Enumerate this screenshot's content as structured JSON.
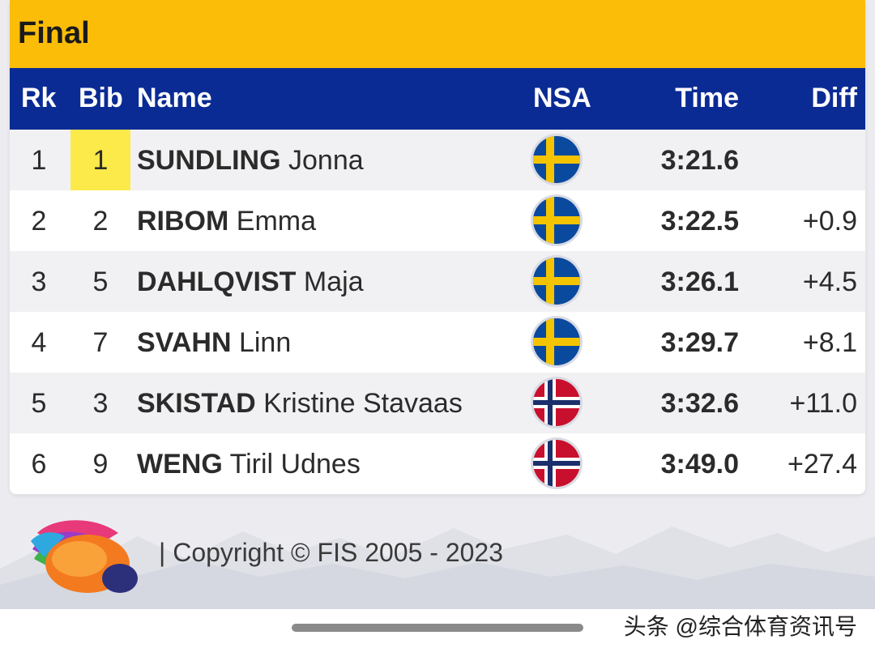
{
  "title": "Final",
  "columns": {
    "rk": "Rk",
    "bib": "Bib",
    "name": "Name",
    "nsa": "NSA",
    "time": "Time",
    "diff": "Diff"
  },
  "rows": [
    {
      "rk": "1",
      "bib": "1",
      "surname": "SUNDLING",
      "given": "Jonna",
      "nsa": "sweden-flag-icon",
      "time": "3:21.6",
      "diff": ""
    },
    {
      "rk": "2",
      "bib": "2",
      "surname": "RIBOM",
      "given": "Emma",
      "nsa": "sweden-flag-icon",
      "time": "3:22.5",
      "diff": "+0.9"
    },
    {
      "rk": "3",
      "bib": "5",
      "surname": "DAHLQVIST",
      "given": "Maja",
      "nsa": "sweden-flag-icon",
      "time": "3:26.1",
      "diff": "+4.5"
    },
    {
      "rk": "4",
      "bib": "7",
      "surname": "SVAHN",
      "given": "Linn",
      "nsa": "sweden-flag-icon",
      "time": "3:29.7",
      "diff": "+8.1"
    },
    {
      "rk": "5",
      "bib": "3",
      "surname": "SKISTAD",
      "given": "Kristine Stavaas",
      "nsa": "norway-flag-icon",
      "time": "3:32.6",
      "diff": "+11.0"
    },
    {
      "rk": "6",
      "bib": "9",
      "surname": "WENG",
      "given": "Tiril Udnes",
      "nsa": "norway-flag-icon",
      "time": "3:49.0",
      "diff": "+27.4"
    }
  ],
  "highlighted_bib_row": 0,
  "footer": {
    "copyright": "| Copyright © FIS 2005 - 2023"
  },
  "watermark": "头条 @综合体育资讯号",
  "colors": {
    "title_bar": "#fbbd08",
    "header": "#0b2b94",
    "bib_highlight": "#fce94a"
  }
}
